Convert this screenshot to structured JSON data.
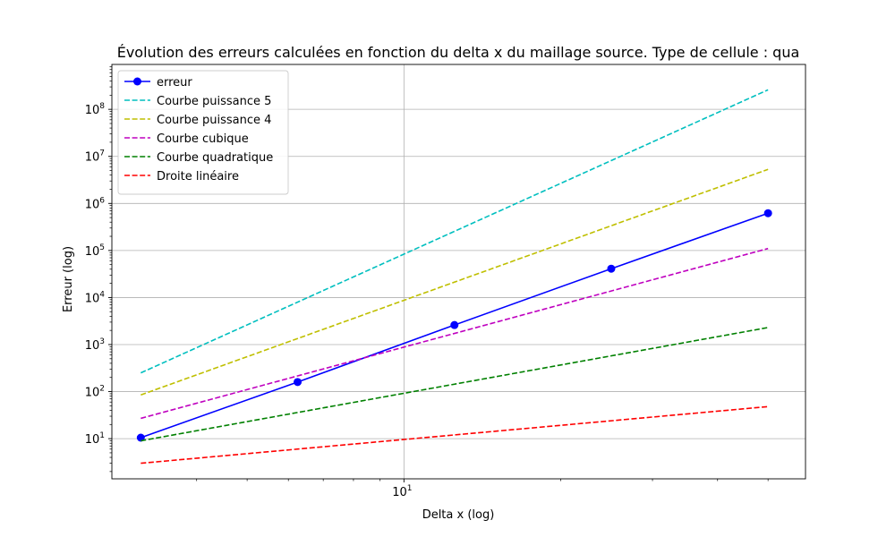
{
  "chart_data": {
    "type": "line",
    "title": "Évolution des erreurs calculées en fonction du delta x du maillage source. Type de cellule : qua",
    "xlabel": "Delta x (log)",
    "ylabel": "Erreur (log)",
    "xscale": "log",
    "yscale": "log",
    "xlim": [
      2.75,
      59
    ],
    "ylim": [
      1.4,
      900000000
    ],
    "grid": true,
    "legend_position": "top-left",
    "x_ticks": [
      {
        "value": 10,
        "base": "10",
        "exp": "1"
      }
    ],
    "y_ticks": [
      {
        "value": 10,
        "base": "10",
        "exp": "1"
      },
      {
        "value": 100,
        "base": "10",
        "exp": "2"
      },
      {
        "value": 1000,
        "base": "10",
        "exp": "3"
      },
      {
        "value": 10000,
        "base": "10",
        "exp": "4"
      },
      {
        "value": 100000,
        "base": "10",
        "exp": "5"
      },
      {
        "value": 1000000,
        "base": "10",
        "exp": "6"
      },
      {
        "value": 10000000,
        "base": "10",
        "exp": "7"
      },
      {
        "value": 100000000,
        "base": "10",
        "exp": "8"
      }
    ],
    "x_minor_ticks": [
      4,
      5,
      6,
      7,
      8,
      9,
      20,
      30,
      40,
      50
    ],
    "y_minor_ticks": [
      2,
      3,
      4,
      5,
      6,
      7,
      8,
      9
    ],
    "series": [
      {
        "name": "erreur",
        "color": "#0000ff",
        "style": "solid",
        "marker": "circle",
        "x": [
          3.125,
          6.25,
          12.5,
          25,
          50
        ],
        "y": [
          10.5,
          160,
          2600,
          41000,
          620000
        ]
      },
      {
        "name": "Courbe puissance 5",
        "color": "#00bfbf",
        "style": "dashed",
        "marker": "none",
        "x": [
          3.125,
          50
        ],
        "y": [
          250,
          260000000
        ]
      },
      {
        "name": "Courbe puissance 4",
        "color": "#bfbf00",
        "style": "dashed",
        "marker": "none",
        "x": [
          3.125,
          50
        ],
        "y": [
          85,
          5300000
        ]
      },
      {
        "name": "Courbe cubique",
        "color": "#bf00bf",
        "style": "dashed",
        "marker": "none",
        "x": [
          3.125,
          50
        ],
        "y": [
          27,
          110000
        ]
      },
      {
        "name": "Courbe quadratique",
        "color": "#008000",
        "style": "dashed",
        "marker": "none",
        "x": [
          3.125,
          50
        ],
        "y": [
          9,
          2300
        ]
      },
      {
        "name": "Droite linéaire",
        "color": "#ff0000",
        "style": "dashed",
        "marker": "none",
        "x": [
          3.125,
          50
        ],
        "y": [
          3,
          48
        ]
      }
    ]
  }
}
